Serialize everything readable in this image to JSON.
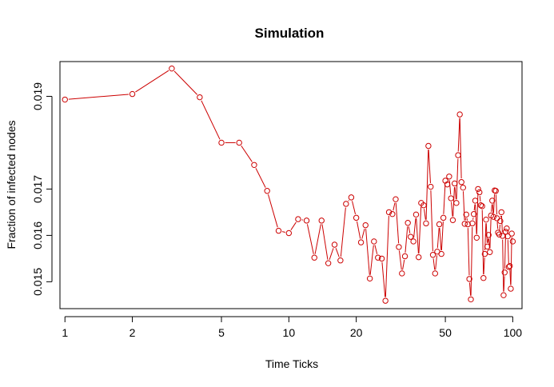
{
  "chart_data": {
    "type": "line",
    "title": "Simulation",
    "xlabel": "Time Ticks",
    "ylabel": "Fraction of infected nodes",
    "x_scale": "log",
    "xlim": [
      0.95,
      110
    ],
    "ylim": [
      0.01442,
      0.01975
    ],
    "x_ticks": [
      1,
      2,
      5,
      10,
      20,
      50,
      100
    ],
    "x_tick_labels": [
      "1",
      "2",
      "5",
      "10",
      "20",
      "50",
      "100"
    ],
    "y_ticks": [
      0.015,
      0.016,
      0.017,
      0.019
    ],
    "y_tick_labels": [
      "0.015",
      "0.016",
      "0.017",
      "0.019"
    ],
    "grid": false,
    "line_color": "#cc0000",
    "marker": "open-circle",
    "series": [
      {
        "x": [
          1,
          2,
          3,
          4,
          5,
          6,
          7,
          8,
          9,
          10,
          11,
          12,
          13,
          14,
          15,
          16,
          17,
          18,
          19,
          20,
          21,
          22,
          23,
          24,
          25,
          26,
          27,
          28,
          29,
          30,
          31,
          32,
          33,
          34,
          35,
          36,
          37,
          38,
          39,
          40,
          41,
          42,
          43,
          44,
          45,
          46,
          47,
          48,
          49,
          50,
          51,
          52,
          53,
          54,
          55,
          56,
          57,
          58,
          59,
          60,
          61,
          62,
          63,
          64,
          65,
          66,
          67,
          68,
          69,
          70,
          71,
          72,
          73,
          74,
          75,
          76,
          77,
          78,
          79,
          80,
          81,
          82,
          83,
          84,
          85,
          86,
          87,
          88,
          89,
          90,
          91,
          92,
          93,
          94,
          95,
          96,
          97,
          98,
          99,
          100
        ],
        "y": [
          0.01893,
          0.01905,
          0.0196,
          0.01898,
          0.018,
          0.018,
          0.01752,
          0.01696,
          0.0161,
          0.01605,
          0.01635,
          0.01632,
          0.01552,
          0.01632,
          0.0154,
          0.0158,
          0.01546,
          0.01668,
          0.01682,
          0.01638,
          0.01585,
          0.01622,
          0.01507,
          0.01587,
          0.01552,
          0.0155,
          0.01459,
          0.0165,
          0.01646,
          0.01678,
          0.01575,
          0.01518,
          0.01555,
          0.01627,
          0.01597,
          0.01587,
          0.01645,
          0.01553,
          0.0167,
          0.01665,
          0.01626,
          0.01793,
          0.01705,
          0.01558,
          0.01518,
          0.01565,
          0.01624,
          0.0156,
          0.01638,
          0.01718,
          0.0171,
          0.01727,
          0.0168,
          0.01633,
          0.01712,
          0.0167,
          0.01773,
          0.01861,
          0.01715,
          0.01703,
          0.01625,
          0.01645,
          0.01624,
          0.01506,
          0.01462,
          0.01626,
          0.01646,
          0.01675,
          0.01595,
          0.017,
          0.01693,
          0.01665,
          0.01663,
          0.01508,
          0.0156,
          0.01634,
          0.01576,
          0.01601,
          0.01564,
          0.01643,
          0.01675,
          0.0164,
          0.01697,
          0.01696,
          0.01637,
          0.01606,
          0.01602,
          0.01631,
          0.0165,
          0.01599,
          0.01471,
          0.0152,
          0.01608,
          0.01615,
          0.01598,
          0.01532,
          0.01534,
          0.01485,
          0.01604,
          0.01587
        ]
      }
    ]
  }
}
